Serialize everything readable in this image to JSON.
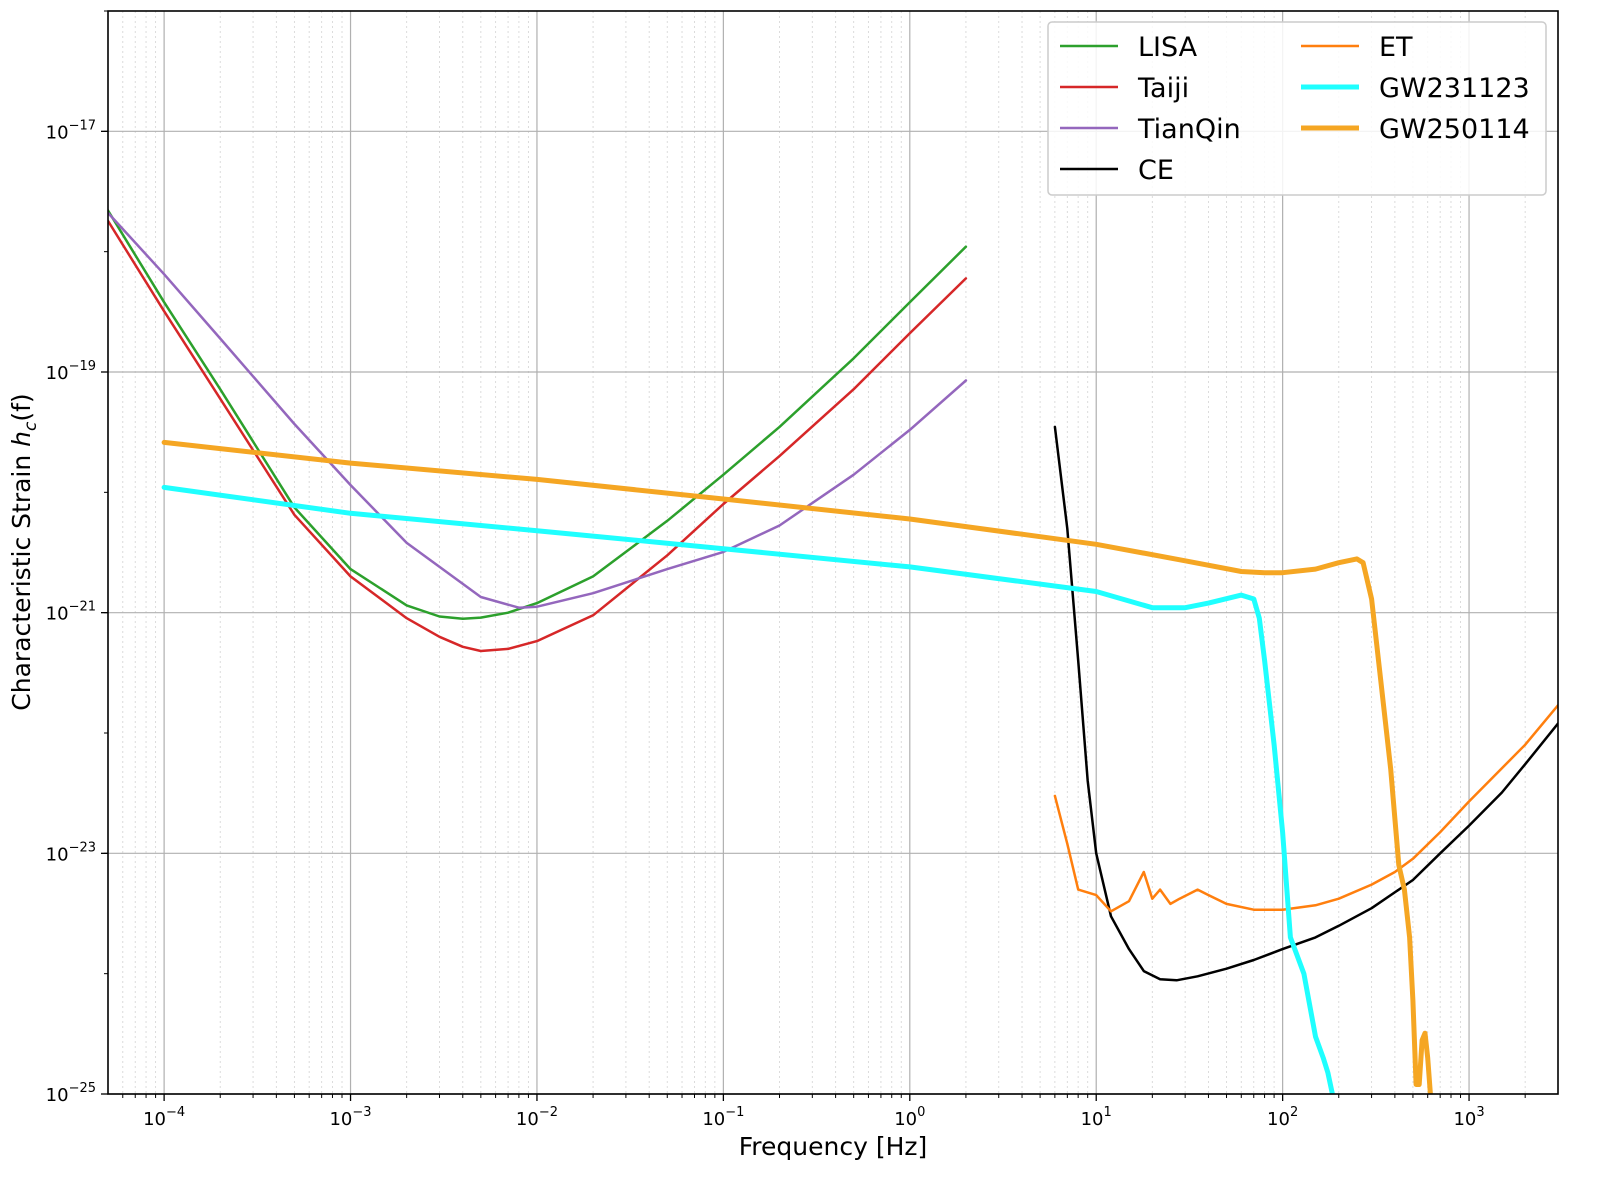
{
  "chart_data": {
    "type": "line",
    "xlabel": "Frequency [Hz]",
    "ylabel_main": "Characteristic Strain ",
    "ylabel_math": "h",
    "ylabel_sub": "c",
    "ylabel_tail": "(f)",
    "xscale": "log",
    "yscale": "log",
    "xlim": [
      5e-05,
      3000
    ],
    "ylim": [
      1e-25,
      1e-16
    ],
    "grid": true,
    "legend_position": "top-right",
    "x_ticks": [
      {
        "value": 0.0001,
        "base": "10",
        "exp": "−4"
      },
      {
        "value": 0.001,
        "base": "10",
        "exp": "−3"
      },
      {
        "value": 0.01,
        "base": "10",
        "exp": "−2"
      },
      {
        "value": 0.1,
        "base": "10",
        "exp": "−1"
      },
      {
        "value": 1,
        "base": "10",
        "exp": "0"
      },
      {
        "value": 10,
        "base": "10",
        "exp": "1"
      },
      {
        "value": 100,
        "base": "10",
        "exp": "2"
      },
      {
        "value": 1000,
        "base": "10",
        "exp": "3"
      }
    ],
    "y_ticks": [
      {
        "value": 1e-17,
        "base": "10",
        "exp": "−17"
      },
      {
        "value": 1e-19,
        "base": "10",
        "exp": "−19"
      },
      {
        "value": 1e-21,
        "base": "10",
        "exp": "−21"
      },
      {
        "value": 1e-23,
        "base": "10",
        "exp": "−23"
      },
      {
        "value": 1e-25,
        "base": "10",
        "exp": "−25"
      }
    ],
    "series": [
      {
        "name": "LISA",
        "color": "#2ca02c",
        "width": 2.5,
        "x": [
          5e-05,
          0.0001,
          0.0002,
          0.0005,
          0.001,
          0.002,
          0.003,
          0.004,
          0.005,
          0.007,
          0.01,
          0.02,
          0.05,
          0.1,
          0.2,
          0.5,
          1,
          2
        ],
        "y": [
          2.2e-18,
          3.8e-19,
          7.2e-20,
          7.5e-21,
          2.3e-21,
          1.15e-21,
          9.3e-22,
          8.9e-22,
          9.1e-22,
          1e-21,
          1.2e-21,
          2e-21,
          5.8e-21,
          1.4e-20,
          3.5e-20,
          1.3e-19,
          3.8e-19,
          1.1e-18
        ]
      },
      {
        "name": "Taiji",
        "color": "#d62728",
        "width": 2.5,
        "x": [
          5e-05,
          0.0001,
          0.0002,
          0.0005,
          0.001,
          0.002,
          0.003,
          0.004,
          0.005,
          0.007,
          0.01,
          0.02,
          0.05,
          0.1,
          0.2,
          0.5,
          1,
          2
        ],
        "y": [
          1.8e-18,
          3.2e-19,
          6e-20,
          6.5e-21,
          2e-21,
          9e-22,
          6.3e-22,
          5.2e-22,
          4.8e-22,
          5e-22,
          5.8e-22,
          9.5e-22,
          3e-21,
          8e-21,
          2e-20,
          7.2e-20,
          2.1e-19,
          6e-19
        ]
      },
      {
        "name": "TianQin",
        "color": "#9467bd",
        "width": 2.5,
        "x": [
          5e-05,
          0.0001,
          0.0002,
          0.0005,
          0.001,
          0.002,
          0.005,
          0.008,
          0.01,
          0.02,
          0.05,
          0.1,
          0.2,
          0.5,
          1,
          2
        ],
        "y": [
          2.1e-18,
          6.5e-19,
          1.9e-19,
          3.7e-20,
          1.15e-20,
          3.8e-21,
          1.35e-21,
          1.1e-21,
          1.12e-21,
          1.45e-21,
          2.3e-21,
          3.2e-21,
          5.3e-21,
          1.4e-20,
          3.3e-20,
          8.5e-20
        ]
      },
      {
        "name": "CE",
        "color": "#000000",
        "width": 2.5,
        "x": [
          6,
          7,
          8,
          9,
          10,
          12,
          15,
          18,
          22,
          27,
          35,
          50,
          70,
          100,
          150,
          200,
          300,
          500,
          700,
          1000,
          1500,
          2000,
          3000
        ],
        "y": [
          3.5e-20,
          5e-21,
          4e-22,
          4e-23,
          1e-23,
          3e-24,
          1.6e-24,
          1.05e-24,
          9e-25,
          8.8e-25,
          9.5e-25,
          1.1e-24,
          1.3e-24,
          1.6e-24,
          2e-24,
          2.5e-24,
          3.5e-24,
          6e-24,
          1e-23,
          1.7e-23,
          3.2e-23,
          5.5e-23,
          1.2e-22
        ]
      },
      {
        "name": "ET",
        "color": "#ff7f0e",
        "width": 2.5,
        "x": [
          6,
          7,
          8,
          10,
          12,
          15,
          18,
          20,
          22,
          25,
          28,
          35,
          40,
          50,
          70,
          100,
          150,
          200,
          300,
          400,
          500,
          700,
          1000,
          2000,
          3000
        ],
        "y": [
          3e-23,
          1.2e-23,
          5e-24,
          4.5e-24,
          3.3e-24,
          4e-24,
          7e-24,
          4.2e-24,
          5e-24,
          3.8e-24,
          4.2e-24,
          5e-24,
          4.5e-24,
          3.8e-24,
          3.4e-24,
          3.4e-24,
          3.7e-24,
          4.2e-24,
          5.5e-24,
          7e-24,
          9e-24,
          1.5e-23,
          2.7e-23,
          8e-23,
          1.7e-22
        ]
      },
      {
        "name": "GW231123",
        "color": "#1fffff",
        "width": 5,
        "x": [
          0.0001,
          0.001,
          0.01,
          0.1,
          1,
          10,
          20,
          30,
          40,
          60,
          70,
          75,
          80,
          90,
          100,
          110,
          130,
          150,
          165,
          175,
          185
        ],
        "y": [
          1.1e-20,
          6.7e-21,
          4.8e-21,
          3.4e-21,
          2.4e-21,
          1.5e-21,
          1.1e-21,
          1.1e-21,
          1.2e-21,
          1.4e-21,
          1.3e-21,
          9e-22,
          4e-22,
          8e-23,
          1.5e-23,
          2e-24,
          1e-24,
          3e-25,
          2e-25,
          1.5e-25,
          1e-25
        ]
      },
      {
        "name": "GW250114",
        "color": "#f5a623",
        "width": 5,
        "x": [
          0.0001,
          0.001,
          0.01,
          0.1,
          1,
          10,
          30,
          60,
          80,
          100,
          150,
          200,
          250,
          270,
          300,
          330,
          380,
          420,
          450,
          480,
          500,
          520,
          540,
          560,
          580,
          600,
          620,
          640
        ],
        "y": [
          2.6e-20,
          1.75e-20,
          1.28e-20,
          8.8e-21,
          6e-21,
          3.7e-21,
          2.7e-21,
          2.2e-21,
          2.15e-21,
          2.15e-21,
          2.3e-21,
          2.6e-21,
          2.8e-21,
          2.6e-21,
          1.3e-21,
          3.5e-22,
          5e-23,
          8e-24,
          5e-24,
          2e-24,
          6e-25,
          1.2e-25,
          1.2e-25,
          2.8e-25,
          3.2e-25,
          2e-25,
          1e-25,
          6e-26
        ]
      }
    ]
  }
}
